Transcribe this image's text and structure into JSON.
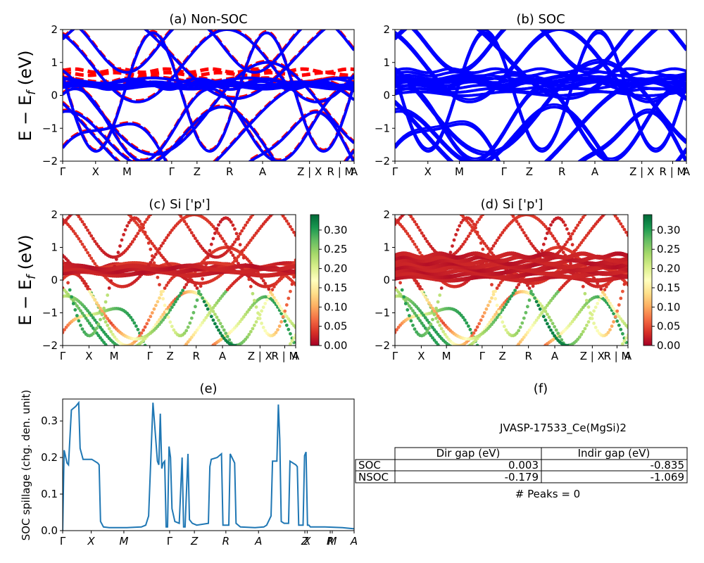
{
  "figure": {
    "ylabel_bands": "E − E",
    "ylabel_bands_sub": "f",
    "ylabel_bands_unit": " (eV)",
    "ylabel_spillage": "SOC spillage (chg. den. unit)"
  },
  "kpath": {
    "labels": [
      "Γ",
      "X",
      "M",
      "Γ",
      "Z",
      "R",
      "A",
      "Z | X",
      "R | M",
      "A"
    ],
    "labels_d": [
      "Γ",
      "X",
      "M",
      "Γ",
      "Z",
      "R",
      "A",
      "Z | X",
      "R | M",
      "A"
    ],
    "labels_c": [
      "Γ",
      "X",
      "M",
      "Γ",
      "Z",
      "R",
      "A",
      "Z | X",
      "R | M",
      "A"
    ],
    "labels_e": [
      "Γ",
      "X",
      "M",
      "Γ",
      "Z",
      "R",
      "A",
      "Z",
      "X",
      "R",
      "M",
      "A"
    ]
  },
  "colorbar": {
    "ticks": [
      "0.00",
      "0.05",
      "0.10",
      "0.15",
      "0.20",
      "0.25",
      "0.30"
    ]
  },
  "chart_data": [
    {
      "id": "a",
      "type": "line",
      "title": "(a) Non-SOC",
      "ylim": [
        -2,
        2
      ],
      "yticks": [
        "−2",
        "−1",
        "0",
        "1",
        "2"
      ],
      "series": [
        {
          "style": "solid",
          "color": "#0000ff"
        },
        {
          "style": "dashed",
          "color": "#ff0000"
        }
      ]
    },
    {
      "id": "b",
      "type": "line",
      "title": "(b) SOC",
      "ylim": [
        -2,
        2
      ],
      "yticks": [
        "−2",
        "−1",
        "0",
        "1",
        "2"
      ],
      "series": [
        {
          "style": "solid",
          "color": "#0000ff"
        }
      ]
    },
    {
      "id": "c",
      "type": "scatter",
      "title": "(c)  Si ['p']",
      "ylim": [
        -2,
        2
      ],
      "yticks": [
        "−2",
        "−1",
        "0",
        "1",
        "2"
      ],
      "colormap": "RdYlGn",
      "clim": [
        0.0,
        0.34
      ]
    },
    {
      "id": "d",
      "type": "scatter",
      "title": "(d) Si ['p']",
      "ylim": [
        -2,
        2
      ],
      "yticks": [
        "−2",
        "−1",
        "0",
        "1",
        "2"
      ],
      "colormap": "RdYlGn",
      "clim": [
        0.0,
        0.34
      ]
    },
    {
      "id": "e",
      "type": "line",
      "title": "(e)",
      "ylabel": "SOC spillage (chg. den. unit)",
      "ylim": [
        0,
        0.36
      ],
      "yticks": [
        "0.0",
        "0.1",
        "0.2",
        "0.3"
      ],
      "color": "#1f77b4",
      "points": [
        [
          0,
          0.0
        ],
        [
          0.005,
          0.22
        ],
        [
          0.015,
          0.185
        ],
        [
          0.02,
          0.18
        ],
        [
          0.03,
          0.33
        ],
        [
          0.045,
          0.34
        ],
        [
          0.055,
          0.35
        ],
        [
          0.06,
          0.225
        ],
        [
          0.07,
          0.195
        ],
        [
          0.1,
          0.195
        ],
        [
          0.12,
          0.185
        ],
        [
          0.125,
          0.18
        ],
        [
          0.13,
          0.025
        ],
        [
          0.14,
          0.01
        ],
        [
          0.16,
          0.008
        ],
        [
          0.19,
          0.008
        ],
        [
          0.22,
          0.008
        ],
        [
          0.27,
          0.01
        ],
        [
          0.285,
          0.015
        ],
        [
          0.295,
          0.04
        ],
        [
          0.31,
          0.35
        ],
        [
          0.325,
          0.19
        ],
        [
          0.33,
          0.18
        ],
        [
          0.335,
          0.32
        ],
        [
          0.34,
          0.17
        ],
        [
          0.345,
          0.185
        ],
        [
          0.35,
          0.19
        ],
        [
          0.355,
          0.01
        ],
        [
          0.36,
          0.01
        ],
        [
          0.365,
          0.23
        ],
        [
          0.37,
          0.2
        ],
        [
          0.375,
          0.06
        ],
        [
          0.385,
          0.025
        ],
        [
          0.4,
          0.02
        ],
        [
          0.41,
          0.2
        ],
        [
          0.415,
          0.01
        ],
        [
          0.42,
          0.01
        ],
        [
          0.43,
          0.21
        ],
        [
          0.435,
          0.03
        ],
        [
          0.445,
          0.02
        ],
        [
          0.46,
          0.015
        ],
        [
          0.5,
          0.02
        ],
        [
          0.505,
          0.175
        ],
        [
          0.51,
          0.195
        ],
        [
          0.53,
          0.2
        ],
        [
          0.545,
          0.21
        ],
        [
          0.55,
          0.015
        ],
        [
          0.57,
          0.015
        ],
        [
          0.575,
          0.21
        ],
        [
          0.59,
          0.185
        ],
        [
          0.595,
          0.02
        ],
        [
          0.61,
          0.01
        ],
        [
          0.66,
          0.008
        ],
        [
          0.69,
          0.01
        ],
        [
          0.7,
          0.015
        ],
        [
          0.715,
          0.04
        ],
        [
          0.72,
          0.19
        ],
        [
          0.735,
          0.19
        ],
        [
          0.74,
          0.345
        ],
        [
          0.745,
          0.25
        ],
        [
          0.75,
          0.025
        ],
        [
          0.76,
          0.02
        ],
        [
          0.775,
          0.02
        ],
        [
          0.78,
          0.19
        ],
        [
          0.8,
          0.18
        ],
        [
          0.805,
          0.175
        ],
        [
          0.81,
          0.015
        ],
        [
          0.825,
          0.015
        ],
        [
          0.83,
          0.205
        ],
        [
          0.835,
          0.215
        ],
        [
          0.84,
          0.015
        ],
        [
          0.845,
          0.015
        ],
        [
          0.85,
          0.01
        ],
        [
          0.9,
          0.01
        ],
        [
          0.96,
          0.008
        ],
        [
          1.0,
          0.005
        ]
      ]
    }
  ],
  "table": {
    "title": "(f)",
    "caption": "JVASP-17533_Ce(MgSi)2",
    "headers": [
      "Dir gap (eV)",
      "Indir gap (eV)"
    ],
    "rows": [
      {
        "label": "SOC",
        "dir": "0.003",
        "indir": "-0.835"
      },
      {
        "label": "NSOC",
        "dir": "-0.179",
        "indir": "-1.069"
      }
    ],
    "footer": "# Peaks = 0"
  }
}
